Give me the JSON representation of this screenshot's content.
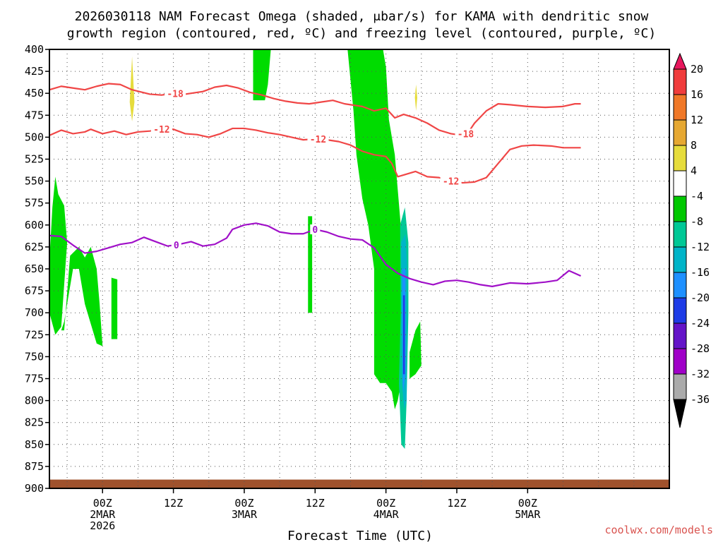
{
  "title_line1": "2026030118 NAM Forecast Omega (shaded, μbar/s) for KAMA with dendritic snow",
  "title_line2": "growth region (contoured, red, ºC) and freezing level (contoured, purple, ºC)",
  "watermark": "coolwx.com/models",
  "chart_data": {
    "type": "heatmap",
    "xlabel": "Forecast Time (UTC)",
    "ylabel": "",
    "x_range_hours": [
      -9,
      96
    ],
    "ylim": [
      400,
      900
    ],
    "y_ticks": [
      400,
      425,
      450,
      475,
      500,
      525,
      550,
      575,
      600,
      625,
      650,
      675,
      700,
      725,
      750,
      775,
      800,
      825,
      850,
      875,
      900
    ],
    "x_ticks": [
      {
        "hour": 0,
        "lines": [
          "00Z",
          "2MAR",
          "2026"
        ]
      },
      {
        "hour": 12,
        "lines": [
          "12Z"
        ]
      },
      {
        "hour": 24,
        "lines": [
          "00Z",
          "3MAR"
        ]
      },
      {
        "hour": 36,
        "lines": [
          "12Z"
        ]
      },
      {
        "hour": 48,
        "lines": [
          "00Z",
          "4MAR"
        ]
      },
      {
        "hour": 60,
        "lines": [
          "12Z"
        ]
      },
      {
        "hour": 72,
        "lines": [
          "00Z",
          "5MAR"
        ]
      }
    ],
    "grid": true,
    "colorbar": {
      "labels": [
        "20",
        "16",
        "12",
        "8",
        "4",
        "-4",
        "-8",
        "-12",
        "-16",
        "-20",
        "-24",
        "-28",
        "-32",
        "-36"
      ],
      "colors": [
        "#e8175d",
        "#f03c3c",
        "#f07828",
        "#e6a832",
        "#e6dc3c",
        "#ffffff",
        "#00c800",
        "#00c896",
        "#00b4c8",
        "#1e90ff",
        "#1e3ce6",
        "#6414c8",
        "#a000c8",
        "#aaaaaa",
        "#000000"
      ]
    },
    "series": [
      {
        "name": "-18",
        "color": "#f04646",
        "label_hours": [
          12.3,
          61.5
        ],
        "points": [
          [
            -9,
            446
          ],
          [
            -7,
            442
          ],
          [
            -5,
            444
          ],
          [
            -3,
            446
          ],
          [
            -1,
            442
          ],
          [
            1,
            439
          ],
          [
            3,
            440
          ],
          [
            5,
            446
          ],
          [
            8,
            451
          ],
          [
            10,
            452
          ],
          [
            12,
            450
          ],
          [
            14,
            451
          ],
          [
            17,
            448
          ],
          [
            19,
            443
          ],
          [
            21,
            441
          ],
          [
            23,
            444
          ],
          [
            25,
            449
          ],
          [
            27,
            452
          ],
          [
            29,
            456
          ],
          [
            31,
            459
          ],
          [
            33,
            461
          ],
          [
            35,
            462
          ],
          [
            37,
            460
          ],
          [
            39,
            458
          ],
          [
            41,
            462
          ],
          [
            44,
            465
          ],
          [
            46,
            470
          ],
          [
            48,
            467
          ],
          [
            49.5,
            478
          ],
          [
            51,
            474
          ],
          [
            53,
            478
          ],
          [
            55,
            484
          ],
          [
            57,
            492
          ],
          [
            59,
            496
          ],
          [
            61,
            498
          ],
          [
            62,
            494
          ],
          [
            63,
            484
          ],
          [
            65,
            470
          ],
          [
            67,
            462
          ],
          [
            69,
            463
          ],
          [
            72,
            465
          ],
          [
            75,
            466
          ],
          [
            78,
            465
          ],
          [
            80,
            462
          ],
          [
            81,
            462
          ]
        ]
      },
      {
        "name": "-12",
        "color": "#f04646",
        "label_hours": [
          10,
          36.5,
          59
        ],
        "points": [
          [
            -9,
            498
          ],
          [
            -7,
            492
          ],
          [
            -5,
            496
          ],
          [
            -3,
            494
          ],
          [
            -2,
            491
          ],
          [
            0,
            496
          ],
          [
            2,
            493
          ],
          [
            4,
            497
          ],
          [
            6,
            494
          ],
          [
            8,
            493
          ],
          [
            10,
            491
          ],
          [
            12,
            491
          ],
          [
            14,
            496
          ],
          [
            16,
            497
          ],
          [
            18,
            500
          ],
          [
            20,
            496
          ],
          [
            22,
            490
          ],
          [
            24,
            490
          ],
          [
            26,
            492
          ],
          [
            28,
            495
          ],
          [
            30,
            497
          ],
          [
            32,
            500
          ],
          [
            34,
            503
          ],
          [
            36,
            502
          ],
          [
            38,
            503
          ],
          [
            40,
            505
          ],
          [
            42,
            509
          ],
          [
            44,
            516
          ],
          [
            46,
            520
          ],
          [
            48,
            522
          ],
          [
            49,
            530
          ],
          [
            50,
            545
          ],
          [
            51,
            543
          ],
          [
            53,
            539
          ],
          [
            55,
            545
          ],
          [
            57,
            546
          ],
          [
            59,
            550
          ],
          [
            61,
            552
          ],
          [
            63,
            551
          ],
          [
            65,
            546
          ],
          [
            67,
            530
          ],
          [
            69,
            514
          ],
          [
            71,
            510
          ],
          [
            73,
            509
          ],
          [
            76,
            510
          ],
          [
            78,
            512
          ],
          [
            81,
            512
          ]
        ]
      },
      {
        "name": "0",
        "color": "#a010c8",
        "label_hours": [
          12.5,
          36
        ],
        "points": [
          [
            -9,
            612
          ],
          [
            -7,
            613
          ],
          [
            -5,
            623
          ],
          [
            -3,
            632
          ],
          [
            -1,
            630
          ],
          [
            1,
            626
          ],
          [
            3,
            622
          ],
          [
            5,
            620
          ],
          [
            7,
            614
          ],
          [
            9,
            619
          ],
          [
            11,
            624
          ],
          [
            13,
            622
          ],
          [
            15,
            619
          ],
          [
            17,
            624
          ],
          [
            19,
            622
          ],
          [
            21,
            615
          ],
          [
            22,
            605
          ],
          [
            24,
            600
          ],
          [
            26,
            598
          ],
          [
            28,
            601
          ],
          [
            30,
            608
          ],
          [
            32,
            610
          ],
          [
            34,
            610
          ],
          [
            36,
            605
          ],
          [
            38,
            608
          ],
          [
            40,
            613
          ],
          [
            42,
            616
          ],
          [
            44,
            617
          ],
          [
            46,
            626
          ],
          [
            48,
            645
          ],
          [
            50,
            655
          ],
          [
            52,
            661
          ],
          [
            54,
            665
          ],
          [
            56,
            668
          ],
          [
            58,
            664
          ],
          [
            60,
            663
          ],
          [
            62,
            665
          ],
          [
            64,
            668
          ],
          [
            66,
            670
          ],
          [
            69,
            666
          ],
          [
            72,
            667
          ],
          [
            75,
            665
          ],
          [
            77,
            663
          ],
          [
            79,
            652
          ],
          [
            81,
            658
          ]
        ]
      }
    ],
    "shaded_regions": [
      {
        "color": "#00dc00",
        "points": [
          [
            -9,
            640
          ],
          [
            -8.5,
            580
          ],
          [
            -8,
            545
          ],
          [
            -7.5,
            565
          ],
          [
            -6.5,
            578
          ],
          [
            -6,
            620
          ],
          [
            -7,
            716
          ],
          [
            -8,
            725
          ],
          [
            -9,
            700
          ]
        ]
      },
      {
        "color": "#00dc00",
        "points": [
          [
            -7,
            720
          ],
          [
            -6.5,
            720
          ],
          [
            -5.5,
            635
          ],
          [
            -4,
            625
          ],
          [
            -3,
            637
          ],
          [
            -2,
            625
          ],
          [
            -1,
            650
          ],
          [
            -0.5,
            690
          ],
          [
            0,
            738
          ],
          [
            -1,
            735
          ],
          [
            -3,
            690
          ],
          [
            -4,
            650
          ],
          [
            -5,
            650
          ],
          [
            -6,
            690
          ],
          [
            -6.5,
            710
          ]
        ]
      },
      {
        "color": "#00dc00",
        "points": [
          [
            1.5,
            660
          ],
          [
            2.5,
            662
          ],
          [
            2.5,
            730
          ],
          [
            1.5,
            730
          ]
        ]
      },
      {
        "color": "#00dc00",
        "points": [
          [
            25.5,
            400
          ],
          [
            28.5,
            400
          ],
          [
            28,
            440
          ],
          [
            27.5,
            458
          ],
          [
            25.5,
            458
          ]
        ]
      },
      {
        "color": "#00dc00",
        "points": [
          [
            34.8,
            590
          ],
          [
            35.5,
            590
          ],
          [
            35.5,
            700
          ],
          [
            34.8,
            700
          ]
        ]
      },
      {
        "color": "#00dc00",
        "points": [
          [
            41.5,
            400
          ],
          [
            47.5,
            400
          ],
          [
            48,
            420
          ],
          [
            48.5,
            480
          ],
          [
            49.5,
            520
          ],
          [
            50,
            560
          ],
          [
            50.5,
            600
          ],
          [
            51,
            650
          ],
          [
            50.8,
            680
          ],
          [
            51.5,
            700
          ],
          [
            51,
            740
          ],
          [
            50.8,
            770
          ],
          [
            50,
            800
          ],
          [
            49.5,
            810
          ],
          [
            49,
            790
          ],
          [
            48,
            780
          ],
          [
            47,
            780
          ],
          [
            46,
            770
          ],
          [
            46,
            650
          ],
          [
            45,
            600
          ],
          [
            44,
            570
          ],
          [
            43,
            520
          ],
          [
            42.5,
            470
          ]
        ]
      },
      {
        "color": "#00dc00",
        "points": [
          [
            52,
            745
          ],
          [
            53,
            720
          ],
          [
            53.8,
            710
          ],
          [
            54,
            760
          ],
          [
            53,
            770
          ],
          [
            52,
            775
          ]
        ]
      },
      {
        "color": "#00c896",
        "points": [
          [
            50.4,
            600
          ],
          [
            51.2,
            580
          ],
          [
            51.8,
            620
          ],
          [
            51.8,
            700
          ],
          [
            51.5,
            800
          ],
          [
            51.2,
            855
          ],
          [
            50.6,
            850
          ],
          [
            50.2,
            780
          ],
          [
            50.5,
            700
          ]
        ]
      },
      {
        "color": "#00b4c8",
        "points": [
          [
            50.6,
            620
          ],
          [
            51.3,
            610
          ],
          [
            51.6,
            650
          ],
          [
            51.5,
            800
          ],
          [
            51.1,
            810
          ],
          [
            50.7,
            780
          ],
          [
            50.6,
            700
          ]
        ]
      },
      {
        "color": "#1e90ff",
        "points": [
          [
            50.8,
            650
          ],
          [
            51.3,
            650
          ],
          [
            51.3,
            770
          ],
          [
            50.9,
            790
          ],
          [
            50.8,
            700
          ]
        ]
      },
      {
        "color": "#1e3ce6",
        "points": [
          [
            50.9,
            680
          ],
          [
            51.2,
            680
          ],
          [
            51.2,
            770
          ],
          [
            50.9,
            770
          ]
        ]
      },
      {
        "color": "#e6dc3c",
        "points": [
          [
            4.6,
            460
          ],
          [
            5,
            408
          ],
          [
            5.4,
            460
          ],
          [
            5,
            482
          ]
        ]
      },
      {
        "color": "#e6dc3c",
        "points": [
          [
            52.9,
            455
          ],
          [
            53.1,
            440
          ],
          [
            53.3,
            455
          ],
          [
            53.1,
            470
          ]
        ]
      }
    ],
    "terrain": {
      "color": "#a0522d",
      "top_pressure": 890
    }
  }
}
